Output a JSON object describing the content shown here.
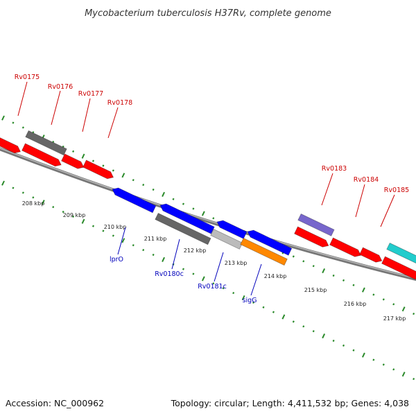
{
  "title": "Mycobacterium tuberculosis H37Rv, complete genome",
  "footer": {
    "accession": "Accession: NC_000962",
    "summary": "Topology: circular; Length: 4,411,532 bp; Genes: 4,038"
  },
  "colors": {
    "forward_label": "#cc0000",
    "reverse_label": "#0000bb",
    "tick": "#2a8a2a",
    "backbone": "#8a8a8a"
  },
  "scale": {
    "ticks": [
      {
        "kbp": 208,
        "label": "208 kbp"
      },
      {
        "kbp": 209,
        "label": "209 kbp"
      },
      {
        "kbp": 210,
        "label": "210 kbp"
      },
      {
        "kbp": 211,
        "label": "211 kbp"
      },
      {
        "kbp": 212,
        "label": "212 kbp"
      },
      {
        "kbp": 213,
        "label": "213 kbp"
      },
      {
        "kbp": 214,
        "label": "214 kbp"
      },
      {
        "kbp": 215,
        "label": "215 kbp"
      },
      {
        "kbp": 216,
        "label": "216 kbp"
      },
      {
        "kbp": 217,
        "label": "217 kbp"
      }
    ]
  },
  "genes": {
    "forward_labeled": [
      {
        "name": "Rv0175",
        "color": "#ff0000"
      },
      {
        "name": "Rv0176",
        "color": "#ff0000"
      },
      {
        "name": "Rv0177",
        "color": "#ff0000"
      },
      {
        "name": "Rv0178",
        "color": "#ff0000"
      },
      {
        "name": "Rv0183",
        "color": "#ff0000"
      },
      {
        "name": "Rv0184",
        "color": "#ff0000"
      },
      {
        "name": "Rv0185",
        "color": "#ff0000"
      }
    ],
    "reverse_labeled": [
      {
        "name": "lprO",
        "color": "#0000ff"
      },
      {
        "name": "Rv0180c",
        "color": "#0000ff"
      },
      {
        "name": "Rv0181c",
        "color": "#0000ff"
      },
      {
        "name": "sigG",
        "color": "#0000ff"
      }
    ],
    "feature_colors": {
      "forward_cds": "#ff0000",
      "reverse_cds": "#0000ff",
      "other_gray": "#666666",
      "light_gray": "#bbbbbb",
      "orange": "#ff8800",
      "purple": "#7766cc",
      "cyan": "#22cccc"
    }
  }
}
